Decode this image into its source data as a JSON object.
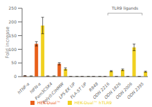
{
  "chart_data": {
    "type": "bar",
    "categories": [
      "hTNF-α",
      "hIFN-α",
      "Pam3CSK4",
      "Poly(I:C)HMW",
      "LPS-EK UP",
      "FLA-ST UP",
      "R848",
      "ODN 2216",
      "ODN 1826",
      "ODN 2006",
      "ODN 2395"
    ],
    "series": [
      {
        "name": "HEK-Dual™",
        "color": "#e8601a",
        "values": [
          3,
          120,
          2,
          47,
          1,
          1,
          1,
          1,
          1,
          1,
          1
        ],
        "errors": [
          1.0,
          8,
          0.5,
          4,
          0.3,
          0.3,
          0.3,
          0.3,
          0.3,
          0.3,
          0.3
        ]
      },
      {
        "name": "HEK-Dual™ hTLR9",
        "color": "#f0d020",
        "values": [
          2,
          187,
          2,
          28,
          1,
          1,
          1,
          20,
          25,
          107,
          18
        ],
        "errors": [
          0.5,
          30,
          0.5,
          4,
          0.3,
          0.3,
          0.3,
          2,
          3,
          12,
          2
        ]
      }
    ],
    "ylabel": "Fold increase",
    "ylim": [
      0,
      250
    ],
    "yticks": [
      0,
      50,
      100,
      150,
      200,
      250
    ],
    "annotations": [
      {
        "text": "TLR9 ligands",
        "from": "ODN 2216",
        "to": "ODN 2395"
      }
    ],
    "grid": false,
    "legend": "bottom"
  }
}
